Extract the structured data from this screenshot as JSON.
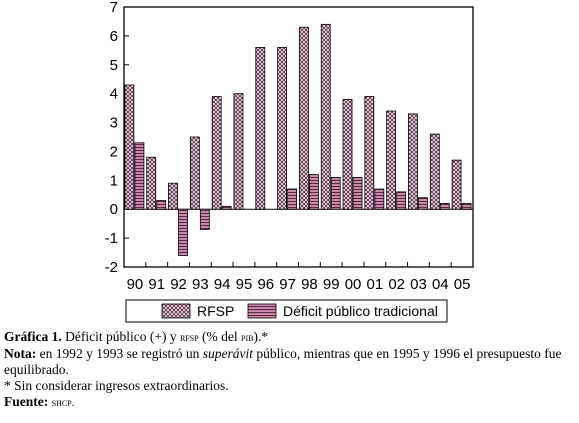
{
  "chart_data": {
    "type": "bar",
    "title": "",
    "xlabel": "",
    "ylabel": "",
    "ylim": [
      -2,
      7
    ],
    "yticks": [
      "7",
      "6",
      "5",
      "4",
      "3",
      "2",
      "1",
      "0",
      "-1",
      "-2"
    ],
    "grid": false,
    "legend_position": "bottom",
    "categories": [
      "90",
      "91",
      "92",
      "93",
      "94",
      "95",
      "96",
      "97",
      "98",
      "99",
      "00",
      "01",
      "02",
      "03",
      "04",
      "05"
    ],
    "series": [
      {
        "name": "RFSP",
        "pattern": "crosshatch",
        "values": [
          4.3,
          1.8,
          0.9,
          2.5,
          3.9,
          4.0,
          5.6,
          5.6,
          6.3,
          6.4,
          3.8,
          3.9,
          3.4,
          3.3,
          2.6,
          1.7
        ]
      },
      {
        "name": "Déficit público tradicional",
        "pattern": "grid",
        "values": [
          2.3,
          0.3,
          -1.6,
          -0.7,
          0.1,
          0.0,
          0.0,
          0.7,
          1.2,
          1.1,
          1.1,
          0.7,
          0.6,
          0.4,
          0.2,
          0.2
        ]
      }
    ]
  },
  "caption": {
    "title_label": "Gráfica 1.",
    "title_a": " Déficit público (+) y ",
    "title_rfsp": "rfsp",
    "title_b": " (% del ",
    "title_pib": "pib",
    "title_c": ").*",
    "note_label": "Nota:",
    "note_a": "  en 1992 y 1993 se registró un ",
    "note_superavit": "superávit",
    "note_b": " público, mientras que en 1995 y 1996 el presupuesto fue equilibrado.",
    "asterisk_note": "* Sin considerar ingresos extraordinarios.",
    "source_label": "Fuente:",
    "source_value": "shcp."
  }
}
